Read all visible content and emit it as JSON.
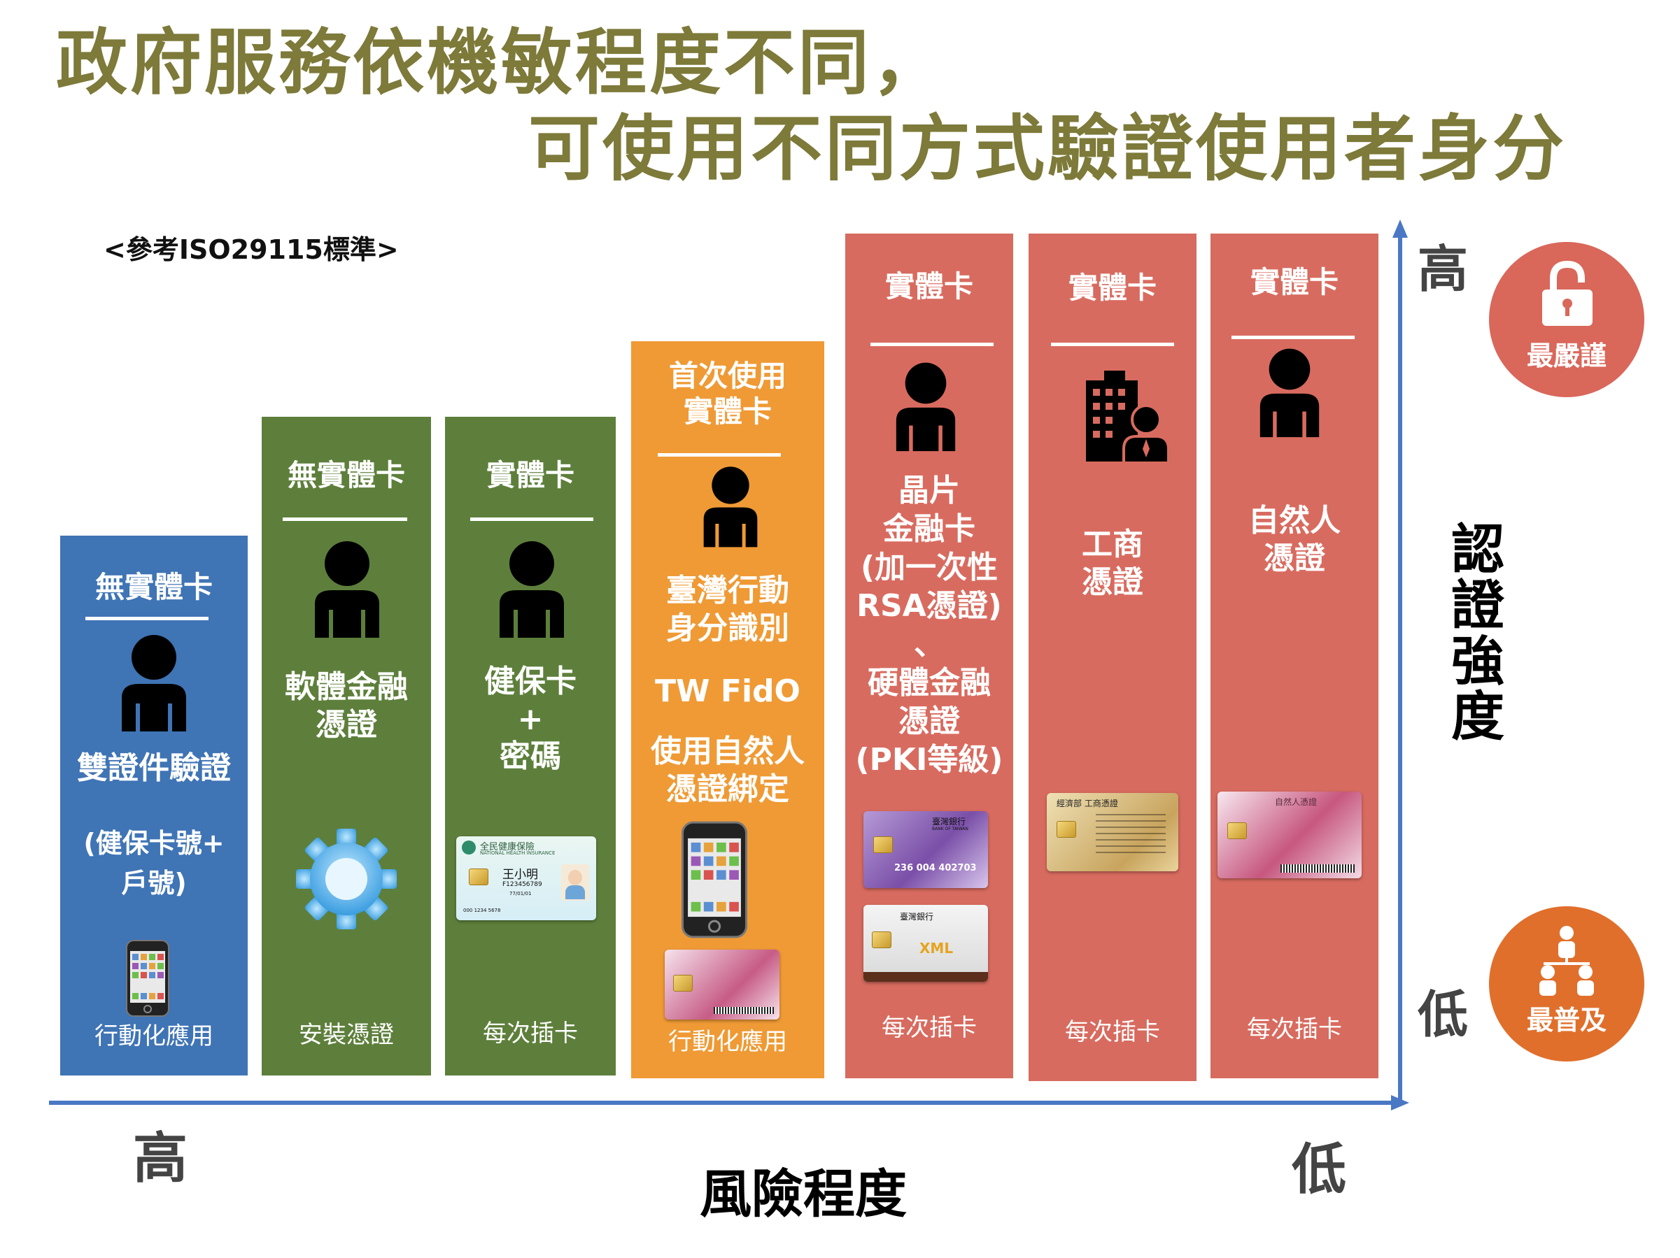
{
  "title": {
    "line1": "政府服務依機敏程度不同，",
    "line2": "可使用不同方式驗證使用者身分"
  },
  "reference_note": "<參考ISO29115標準>",
  "x_axis": {
    "label": "風險程度",
    "left": "高",
    "right": "低"
  },
  "y_axis": {
    "label": "認\n證\n強\n度",
    "top": "高",
    "bottom": "低"
  },
  "badges": {
    "top": {
      "label": "最嚴謹",
      "icon": "padlock-icon",
      "color": "#d9675a"
    },
    "bottom": {
      "label": "最普及",
      "icon": "people-group-icon",
      "color": "#e06f2c"
    }
  },
  "colors": {
    "blue": "#3f74b5",
    "green": "#5d7f3b",
    "orange": "#ef9a35",
    "red": "#d86b5f",
    "title": "#7d7a3a",
    "axis": "#4a78c4"
  },
  "columns": [
    {
      "id": "col1",
      "color": "#3f74b5",
      "header": "無實體卡",
      "method": "雙證件驗證",
      "detail": "(健保卡號+\n戶號)",
      "illustration": "smartphone",
      "footer": "行動化應用"
    },
    {
      "id": "col2",
      "color": "#5d7f3b",
      "header": "無實體卡",
      "method": "軟體金融\n憑證",
      "illustration": "gear-icon",
      "footer": "安裝憑證"
    },
    {
      "id": "col3",
      "color": "#5d7f3b",
      "header": "實體卡",
      "method": "健保卡\n+\n密碼",
      "illustration": "health-insurance-card",
      "card_text": {
        "org": "全民健康保險",
        "org_en": "NATIONAL HEALTH INSURANCE",
        "name": "王小明",
        "id": "F123456789",
        "date": "77/01/01",
        "number": "000 1234 5678"
      },
      "footer": "每次插卡"
    },
    {
      "id": "col4",
      "color": "#ef9a35",
      "header": "首次使用\n實體卡",
      "method": "臺灣行動\n身分識別",
      "method2": "TW FidO",
      "method3": "使用自然人\n憑證綁定",
      "illustration": "smartphone-and-citizen-card",
      "footer": "行動化應用"
    },
    {
      "id": "col5",
      "color": "#d86b5f",
      "header": "實體卡",
      "method": "晶片\n金融卡\n(加一次性\nRSA憑證)\n、\n硬體金融\n憑證\n(PKI等級)",
      "illustration": "bank-chip-cards",
      "card_text": {
        "bank": "臺灣銀行",
        "bank_en": "BANK OF TAIWAN",
        "number": "236 004 402703"
      },
      "footer": "每次插卡"
    },
    {
      "id": "col6",
      "color": "#d86b5f",
      "header": "實體卡",
      "method": "工商\n憑證",
      "illustration": "business-certificate-card",
      "card_text": {
        "issuer": "經濟部 工商憑證"
      },
      "footer": "每次插卡"
    },
    {
      "id": "col7",
      "color": "#d86b5f",
      "header": "實體卡",
      "method": "自然人\n憑證",
      "illustration": "citizen-certificate-card",
      "card_text": {
        "issuer": "自然人憑證"
      },
      "footer": "每次插卡"
    }
  ]
}
